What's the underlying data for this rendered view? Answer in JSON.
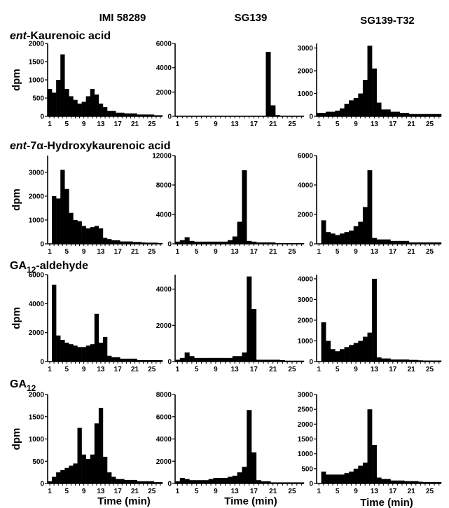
{
  "column_headers": [
    "IMI 58289",
    "SG139",
    "SG139-T32"
  ],
  "row_titles": [
    {
      "italic": "ent",
      "rest": "-Kaurenoic acid"
    },
    {
      "italic": "ent",
      "rest": "-7α-Hydroxykaurenoic acid"
    },
    {
      "pre": "GA",
      "sub": "12",
      "rest": "-aldehyde"
    },
    {
      "pre": "GA",
      "sub": "12",
      "rest": ""
    }
  ],
  "ylabel": "dpm",
  "xlabel": "Time (min)",
  "colors": {
    "bar": "#000000",
    "axis": "#000000",
    "background": "#ffffff"
  },
  "chart_data": [
    {
      "type": "bar",
      "row": 0,
      "col": 0,
      "xlabel": "",
      "ylabel": "dpm",
      "x": [
        1,
        2,
        3,
        4,
        5,
        6,
        7,
        8,
        9,
        10,
        11,
        12,
        13,
        14,
        15,
        16,
        17,
        18,
        19,
        20,
        21,
        22,
        23,
        24,
        25,
        26,
        27
      ],
      "xticks": [
        "1",
        "5",
        "9",
        "13",
        "17",
        "21",
        "25"
      ],
      "ylim": [
        0,
        2000
      ],
      "yticks": [
        0,
        500,
        1000,
        1500,
        2000
      ],
      "values": [
        750,
        650,
        1000,
        1700,
        750,
        550,
        450,
        350,
        400,
        550,
        750,
        600,
        350,
        250,
        150,
        150,
        100,
        100,
        80,
        80,
        80,
        50,
        50,
        50,
        50,
        30,
        30
      ]
    },
    {
      "type": "bar",
      "row": 0,
      "col": 1,
      "xlabel": "",
      "ylabel": "",
      "x": [
        1,
        2,
        3,
        4,
        5,
        6,
        7,
        8,
        9,
        10,
        11,
        12,
        13,
        14,
        15,
        16,
        17,
        18,
        19,
        20,
        21,
        22,
        23,
        24,
        25,
        26,
        27
      ],
      "xticks": [
        "1",
        "5",
        "9",
        "13",
        "17",
        "21",
        "25"
      ],
      "ylim": [
        0,
        6000
      ],
      "yticks": [
        0,
        2000,
        4000,
        6000
      ],
      "values": [
        50,
        50,
        50,
        50,
        50,
        50,
        50,
        50,
        50,
        50,
        50,
        50,
        50,
        50,
        50,
        50,
        50,
        50,
        50,
        5300,
        900,
        100,
        50,
        50,
        50,
        50,
        50
      ]
    },
    {
      "type": "bar",
      "row": 0,
      "col": 2,
      "xlabel": "",
      "ylabel": "",
      "x": [
        1,
        2,
        3,
        4,
        5,
        6,
        7,
        8,
        9,
        10,
        11,
        12,
        13,
        14,
        15,
        16,
        17,
        18,
        19,
        20,
        21,
        22,
        23,
        24,
        25,
        26,
        27
      ],
      "xticks": [
        "1",
        "5",
        "9",
        "13",
        "17",
        "21",
        "25"
      ],
      "ylim": [
        0,
        3200
      ],
      "yticks": [
        0,
        1000,
        2000,
        3000
      ],
      "values": [
        150,
        150,
        200,
        200,
        250,
        350,
        550,
        700,
        800,
        1000,
        1600,
        3100,
        2100,
        600,
        300,
        300,
        200,
        200,
        150,
        150,
        100,
        100,
        100,
        100,
        100,
        100,
        100
      ]
    },
    {
      "type": "bar",
      "row": 1,
      "col": 0,
      "xlabel": "",
      "ylabel": "dpm",
      "x": [
        1,
        2,
        3,
        4,
        5,
        6,
        7,
        8,
        9,
        10,
        11,
        12,
        13,
        14,
        15,
        16,
        17,
        18,
        19,
        20,
        21,
        22,
        23,
        24,
        25,
        26,
        27
      ],
      "xticks": [
        "1",
        "5",
        "9",
        "13",
        "17",
        "21",
        "25"
      ],
      "ylim": [
        0,
        3700
      ],
      "yticks": [
        0,
        1000,
        2000,
        3000
      ],
      "values": [
        0,
        2000,
        1900,
        3100,
        2300,
        1300,
        1000,
        950,
        750,
        650,
        700,
        750,
        650,
        250,
        200,
        150,
        150,
        100,
        100,
        100,
        80,
        80,
        60,
        50,
        50,
        50,
        30
      ]
    },
    {
      "type": "bar",
      "row": 1,
      "col": 1,
      "xlabel": "",
      "ylabel": "",
      "x": [
        1,
        2,
        3,
        4,
        5,
        6,
        7,
        8,
        9,
        10,
        11,
        12,
        13,
        14,
        15,
        16,
        17,
        18,
        19,
        20,
        21,
        22,
        23,
        24,
        25,
        26,
        27
      ],
      "xticks": [
        "1",
        "5",
        "9",
        "13",
        "17",
        "21",
        "25"
      ],
      "ylim": [
        0,
        12000
      ],
      "yticks": [
        0,
        4000,
        8000,
        12000
      ],
      "values": [
        300,
        500,
        900,
        400,
        300,
        300,
        300,
        300,
        300,
        300,
        300,
        500,
        1000,
        3000,
        10000,
        400,
        300,
        200,
        200,
        200,
        200,
        100,
        100,
        100,
        100,
        100,
        100
      ]
    },
    {
      "type": "bar",
      "row": 1,
      "col": 2,
      "xlabel": "",
      "ylabel": "",
      "x": [
        1,
        2,
        3,
        4,
        5,
        6,
        7,
        8,
        9,
        10,
        11,
        12,
        13,
        14,
        15,
        16,
        17,
        18,
        19,
        20,
        21,
        22,
        23,
        24,
        25,
        26,
        27
      ],
      "xticks": [
        "1",
        "5",
        "9",
        "13",
        "17",
        "21",
        "25"
      ],
      "ylim": [
        0,
        6000
      ],
      "yticks": [
        0,
        2000,
        4000,
        6000
      ],
      "values": [
        0,
        1600,
        800,
        700,
        600,
        700,
        800,
        900,
        1200,
        1500,
        2500,
        5000,
        400,
        300,
        300,
        300,
        200,
        200,
        200,
        200,
        100,
        100,
        100,
        100,
        100,
        100,
        100
      ]
    },
    {
      "type": "bar",
      "row": 2,
      "col": 0,
      "xlabel": "",
      "ylabel": "dpm",
      "x": [
        1,
        2,
        3,
        4,
        5,
        6,
        7,
        8,
        9,
        10,
        11,
        12,
        13,
        14,
        15,
        16,
        17,
        18,
        19,
        20,
        21,
        22,
        23,
        24,
        25,
        26,
        27
      ],
      "xticks": [
        "1",
        "5",
        "9",
        "13",
        "17",
        "21",
        "25"
      ],
      "ylim": [
        0,
        6000
      ],
      "yticks": [
        0,
        2000,
        4000,
        6000
      ],
      "values": [
        0,
        5300,
        1800,
        1500,
        1300,
        1200,
        1100,
        1000,
        1000,
        1100,
        1200,
        3300,
        1300,
        1700,
        400,
        300,
        300,
        200,
        200,
        200,
        200,
        100,
        100,
        100,
        100,
        100,
        100
      ]
    },
    {
      "type": "bar",
      "row": 2,
      "col": 1,
      "xlabel": "",
      "ylabel": "",
      "x": [
        1,
        2,
        3,
        4,
        5,
        6,
        7,
        8,
        9,
        10,
        11,
        12,
        13,
        14,
        15,
        16,
        17,
        18,
        19,
        20,
        21,
        22,
        23,
        24,
        25,
        26,
        27
      ],
      "xticks": [
        "1",
        "5",
        "9",
        "13",
        "17",
        "21",
        "25"
      ],
      "ylim": [
        0,
        4800
      ],
      "yticks": [
        0,
        2000,
        4000
      ],
      "values": [
        100,
        200,
        500,
        300,
        200,
        200,
        200,
        200,
        200,
        200,
        200,
        200,
        300,
        300,
        500,
        4700,
        2900,
        100,
        100,
        100,
        100,
        100,
        80,
        50,
        50,
        50,
        50
      ]
    },
    {
      "type": "bar",
      "row": 2,
      "col": 2,
      "xlabel": "",
      "ylabel": "",
      "x": [
        1,
        2,
        3,
        4,
        5,
        6,
        7,
        8,
        9,
        10,
        11,
        12,
        13,
        14,
        15,
        16,
        17,
        18,
        19,
        20,
        21,
        22,
        23,
        24,
        25,
        26,
        27
      ],
      "xticks": [
        "1",
        "5",
        "9",
        "13",
        "17",
        "21",
        "25"
      ],
      "ylim": [
        0,
        4200
      ],
      "yticks": [
        0,
        1000,
        2000,
        3000,
        4000
      ],
      "values": [
        0,
        1900,
        1000,
        600,
        500,
        600,
        700,
        800,
        900,
        1000,
        1200,
        1400,
        4000,
        200,
        150,
        150,
        100,
        100,
        100,
        100,
        80,
        80,
        60,
        50,
        50,
        50,
        50
      ]
    },
    {
      "type": "bar",
      "row": 3,
      "col": 0,
      "xlabel": "Time (min)",
      "ylabel": "dpm",
      "x": [
        1,
        2,
        3,
        4,
        5,
        6,
        7,
        8,
        9,
        10,
        11,
        12,
        13,
        14,
        15,
        16,
        17,
        18,
        19,
        20,
        21,
        22,
        23,
        24,
        25,
        26,
        27
      ],
      "xticks": [
        "1",
        "5",
        "9",
        "13",
        "17",
        "21",
        "25"
      ],
      "ylim": [
        0,
        2000
      ],
      "yticks": [
        0,
        500,
        1000,
        1500,
        2000
      ],
      "values": [
        50,
        150,
        250,
        300,
        350,
        400,
        450,
        1250,
        650,
        550,
        650,
        1350,
        1700,
        600,
        250,
        150,
        100,
        100,
        80,
        80,
        80,
        50,
        50,
        50,
        50,
        30,
        30
      ]
    },
    {
      "type": "bar",
      "row": 3,
      "col": 1,
      "xlabel": "Time (min)",
      "ylabel": "",
      "x": [
        1,
        2,
        3,
        4,
        5,
        6,
        7,
        8,
        9,
        10,
        11,
        12,
        13,
        14,
        15,
        16,
        17,
        18,
        19,
        20,
        21,
        22,
        23,
        24,
        25,
        26,
        27
      ],
      "xticks": [
        "1",
        "5",
        "9",
        "13",
        "17",
        "21",
        "25"
      ],
      "ylim": [
        0,
        8000
      ],
      "yticks": [
        0,
        2000,
        4000,
        6000,
        8000
      ],
      "values": [
        200,
        500,
        400,
        300,
        300,
        300,
        300,
        400,
        500,
        500,
        500,
        600,
        700,
        1000,
        1500,
        6600,
        2800,
        300,
        200,
        200,
        100,
        100,
        100,
        100,
        100,
        100,
        100
      ]
    },
    {
      "type": "bar",
      "row": 3,
      "col": 2,
      "xlabel": "Time (min)",
      "ylabel": "",
      "x": [
        1,
        2,
        3,
        4,
        5,
        6,
        7,
        8,
        9,
        10,
        11,
        12,
        13,
        14,
        15,
        16,
        17,
        18,
        19,
        20,
        21,
        22,
        23,
        24,
        25,
        26,
        27
      ],
      "xticks": [
        "1",
        "5",
        "9",
        "13",
        "17",
        "21",
        "25"
      ],
      "ylim": [
        0,
        3000
      ],
      "yticks": [
        0,
        500,
        1000,
        1500,
        2000,
        2500,
        3000
      ],
      "values": [
        0,
        400,
        300,
        300,
        300,
        300,
        350,
        400,
        500,
        600,
        700,
        2500,
        1300,
        200,
        150,
        150,
        100,
        100,
        100,
        80,
        80,
        80,
        60,
        50,
        50,
        50,
        50
      ]
    }
  ]
}
